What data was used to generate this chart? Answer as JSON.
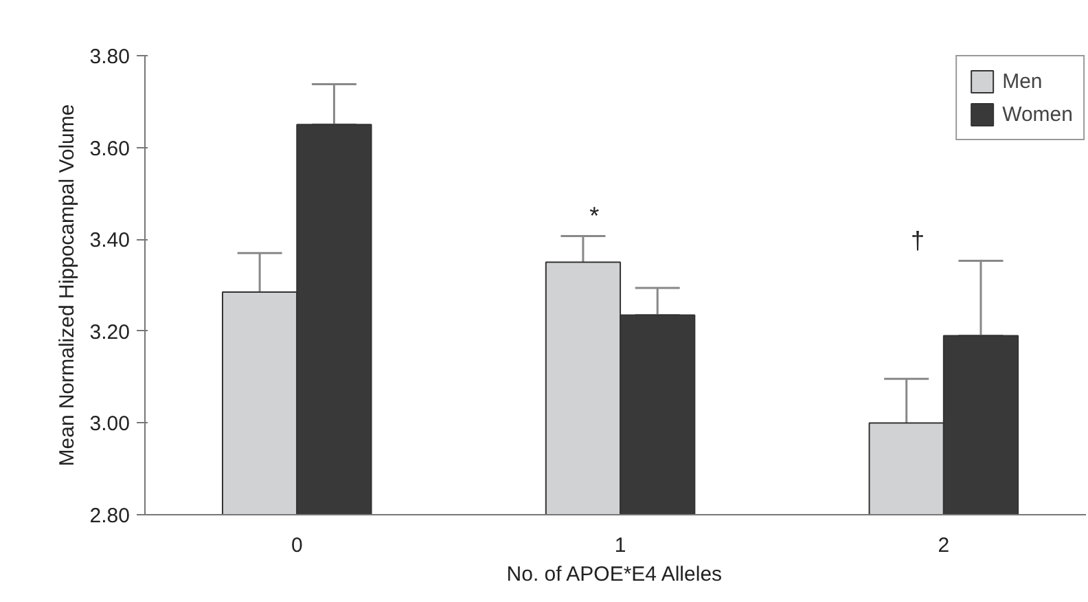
{
  "chart_data": {
    "type": "bar",
    "xlabel": "No. of APOE*E4 Alleles",
    "ylabel": "Mean Normalized Hippocampal Volume",
    "categories": [
      "0",
      "1",
      "2"
    ],
    "series": [
      {
        "name": "Men",
        "color": "#d1d2d4",
        "values": [
          3.285,
          3.35,
          3.0
        ],
        "errors": [
          0.085,
          0.057,
          0.096
        ]
      },
      {
        "name": "Women",
        "color": "#393939",
        "values": [
          3.65,
          3.235,
          3.19
        ],
        "errors": [
          [
            3.65,
            3.738
          ],
          [
            3.235,
            3.294
          ],
          [
            3.19,
            3.353
          ]
        ]
      }
    ],
    "ylim": [
      2.8,
      3.8
    ],
    "yticks": [
      {
        "value": 2.8,
        "label": "2.80"
      },
      {
        "value": 3.0,
        "label": "3.00"
      },
      {
        "value": 3.2,
        "label": "3.20"
      },
      {
        "value": 3.4,
        "label": "3.40"
      },
      {
        "value": 3.6,
        "label": "3.60"
      },
      {
        "value": 3.8,
        "label": "3.80"
      }
    ],
    "annotations": [
      "*",
      "†"
    ],
    "grid": false,
    "legend": "top right"
  }
}
